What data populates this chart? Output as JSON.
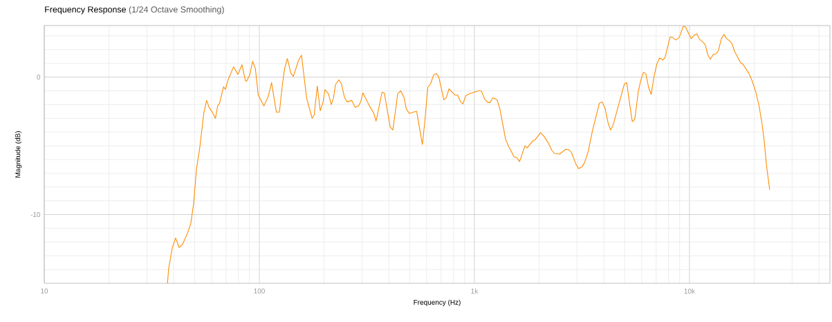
{
  "chart_data": {
    "type": "line",
    "title": "Frequency Response",
    "subtitle": "(1/24 Octave Smoothing)",
    "xlabel": "Frequency (Hz)",
    "ylabel": "Magnitude (dB)",
    "log": "x",
    "grid": true,
    "line_style": "solid",
    "marker": "none",
    "xlim": [
      10,
      45000
    ],
    "ylim": [
      -15,
      3.75
    ],
    "xticks": [
      10,
      100,
      {
        "value": 1000,
        "label": "1k"
      },
      {
        "value": 10000,
        "label": "10k"
      },
      {
        "value": 20,
        "label": null
      },
      {
        "value": 30,
        "label": null
      },
      {
        "value": 40,
        "label": null
      },
      {
        "value": 50,
        "label": null
      },
      {
        "value": 60,
        "label": null
      },
      {
        "value": 70,
        "label": null
      },
      {
        "value": 80,
        "label": null
      },
      {
        "value": 90,
        "label": null
      },
      {
        "value": 200,
        "label": null
      },
      {
        "value": 300,
        "label": null
      },
      {
        "value": 400,
        "label": null
      },
      {
        "value": 500,
        "label": null
      },
      {
        "value": 600,
        "label": null
      },
      {
        "value": 700,
        "label": null
      },
      {
        "value": 800,
        "label": null
      },
      {
        "value": 900,
        "label": null
      },
      {
        "value": 2000,
        "label": null
      },
      {
        "value": 3000,
        "label": null
      },
      {
        "value": 4000,
        "label": null
      },
      {
        "value": 5000,
        "label": null
      },
      {
        "value": 6000,
        "label": null
      },
      {
        "value": 7000,
        "label": null
      },
      {
        "value": 8000,
        "label": null
      },
      {
        "value": 9000,
        "label": null
      },
      {
        "value": 20000,
        "label": null
      },
      {
        "value": 30000,
        "label": null
      },
      {
        "value": 40000,
        "label": null
      }
    ],
    "yticks": [
      -10,
      0,
      {
        "value": -14,
        "label": null
      },
      {
        "value": -13,
        "label": null
      },
      {
        "value": -12,
        "label": null
      },
      {
        "value": -11,
        "label": null
      },
      {
        "value": -9,
        "label": null
      },
      {
        "value": -8,
        "label": null
      },
      {
        "value": -7,
        "label": null
      },
      {
        "value": -6,
        "label": null
      },
      {
        "value": -5,
        "label": null
      },
      {
        "value": -4,
        "label": null
      },
      {
        "value": -3,
        "label": null
      },
      {
        "value": -2,
        "label": null
      },
      {
        "value": -1,
        "label": null
      },
      {
        "value": 1,
        "label": null
      },
      {
        "value": 2,
        "label": null
      },
      {
        "value": 3,
        "label": null
      }
    ],
    "series": [
      {
        "color": "#ff8c00",
        "x": [
          37.4,
          37.9,
          39.4,
          40.8,
          42.4,
          44.0,
          46.2,
          48.0,
          49.5,
          51.0,
          52.8,
          55.2,
          56.9,
          58.4,
          60.2,
          62.5,
          64.0,
          65.3,
          68.2,
          69.5,
          71.6,
          75.9,
          79.6,
          83.0,
          86.1,
          87.3,
          90.2,
          93.1,
          95.9,
          98.8,
          105,
          110,
          114,
          120,
          124,
          128,
          131,
          135,
          140,
          144,
          152,
          157,
          166,
          176,
          180,
          186,
          192,
          198,
          202,
          210,
          216,
          221,
          226,
          234,
          241,
          249,
          256,
          269,
          279,
          289,
          296,
          303,
          324,
          341,
          349,
          372,
          381,
          395,
          406,
          418,
          440,
          455,
          471,
          482,
          498,
          519,
          539,
          573,
          588,
          607,
          625,
          646,
          665,
          682,
          721,
          740,
          762,
          811,
          835,
          862,
          884,
          912,
          952,
          996,
          1045,
          1077,
          1117,
          1155,
          1181,
          1219,
          1275,
          1313,
          1396,
          1442,
          1479,
          1528,
          1574,
          1622,
          1718,
          1758,
          1867,
          1919,
          2028,
          2094,
          2200,
          2295,
          2353,
          2489,
          2661,
          2761,
          2831,
          2959,
          3048,
          3152,
          3246,
          3373,
          3540,
          3673,
          3811,
          3926,
          4056,
          4180,
          4295,
          4425,
          4648,
          4981,
          5109,
          5264,
          5424,
          5572,
          5781,
          5957,
          6110,
          6267,
          6457,
          6637,
          6836,
          7052,
          7263,
          7500,
          7691,
          8123,
          8326,
          8642,
          8930,
          9017,
          9357,
          9592,
          9926,
          10200,
          10510,
          10830,
          11130,
          11550,
          11840,
          12190,
          12500,
          12910,
          13300,
          13640,
          14080,
          14450,
          14890,
          15340,
          15750,
          16230,
          16760,
          17270,
          17700,
          18230,
          18920,
          19540,
          20280,
          21040,
          21680,
          22230,
          22800,
          23610
        ],
        "values": [
          -15,
          -13.9,
          -12.4,
          -11.7,
          -12.4,
          -12.15,
          -11.4,
          -10.65,
          -9.2,
          -6.7,
          -5.2,
          -2.6,
          -1.7,
          -2.2,
          -2.5,
          -3.0,
          -2.1,
          -1.9,
          -0.7,
          -0.9,
          -0.2,
          0.75,
          0.2,
          0.9,
          -0.25,
          -0.3,
          0.15,
          1.15,
          0.6,
          -1.3,
          -2.1,
          -1.4,
          -0.4,
          -2.55,
          -2.55,
          -0.55,
          0.6,
          1.35,
          0.3,
          0.05,
          1.2,
          1.6,
          -1.55,
          -3.0,
          -2.75,
          -0.65,
          -2.45,
          -1.8,
          -0.9,
          -1.25,
          -2.0,
          -1.55,
          -0.55,
          -0.2,
          -0.5,
          -1.5,
          -1.8,
          -1.7,
          -2.2,
          -2.1,
          -1.8,
          -1.15,
          -2.05,
          -2.65,
          -3.2,
          -1.1,
          -1.15,
          -2.55,
          -3.65,
          -3.85,
          -1.2,
          -1.0,
          -1.5,
          -2.3,
          -2.65,
          -2.55,
          -2.5,
          -4.9,
          -3.25,
          -0.75,
          -0.5,
          0.15,
          0.25,
          0.05,
          -1.65,
          -1.5,
          -0.85,
          -1.3,
          -1.3,
          -1.8,
          -1.95,
          -1.35,
          -1.2,
          -1.1,
          -1.0,
          -1.0,
          -1.6,
          -1.85,
          -1.85,
          -1.5,
          -1.65,
          -2.3,
          -4.5,
          -5.05,
          -5.35,
          -5.8,
          -5.85,
          -6.15,
          -5.0,
          -5.15,
          -4.65,
          -4.55,
          -4.05,
          -4.25,
          -4.75,
          -5.35,
          -5.55,
          -5.6,
          -5.25,
          -5.3,
          -5.5,
          -6.3,
          -6.65,
          -6.55,
          -6.25,
          -5.5,
          -3.9,
          -2.9,
          -1.9,
          -1.8,
          -2.3,
          -3.3,
          -3.85,
          -3.45,
          -2.2,
          -0.5,
          -0.4,
          -1.9,
          -3.25,
          -3.05,
          -1.05,
          -0.15,
          0.35,
          0.25,
          -0.75,
          -1.25,
          0.0,
          0.95,
          1.4,
          1.25,
          1.4,
          2.9,
          2.9,
          2.7,
          2.85,
          3.0,
          3.7,
          3.65,
          3.15,
          2.8,
          3.05,
          3.15,
          2.75,
          2.55,
          2.35,
          1.6,
          1.3,
          1.65,
          1.7,
          1.95,
          2.8,
          3.1,
          2.8,
          2.65,
          2.45,
          1.85,
          1.45,
          1.05,
          0.95,
          0.65,
          0.25,
          -0.25,
          -1.0,
          -2.05,
          -3.25,
          -4.55,
          -6.4,
          -8.2
        ]
      }
    ]
  }
}
